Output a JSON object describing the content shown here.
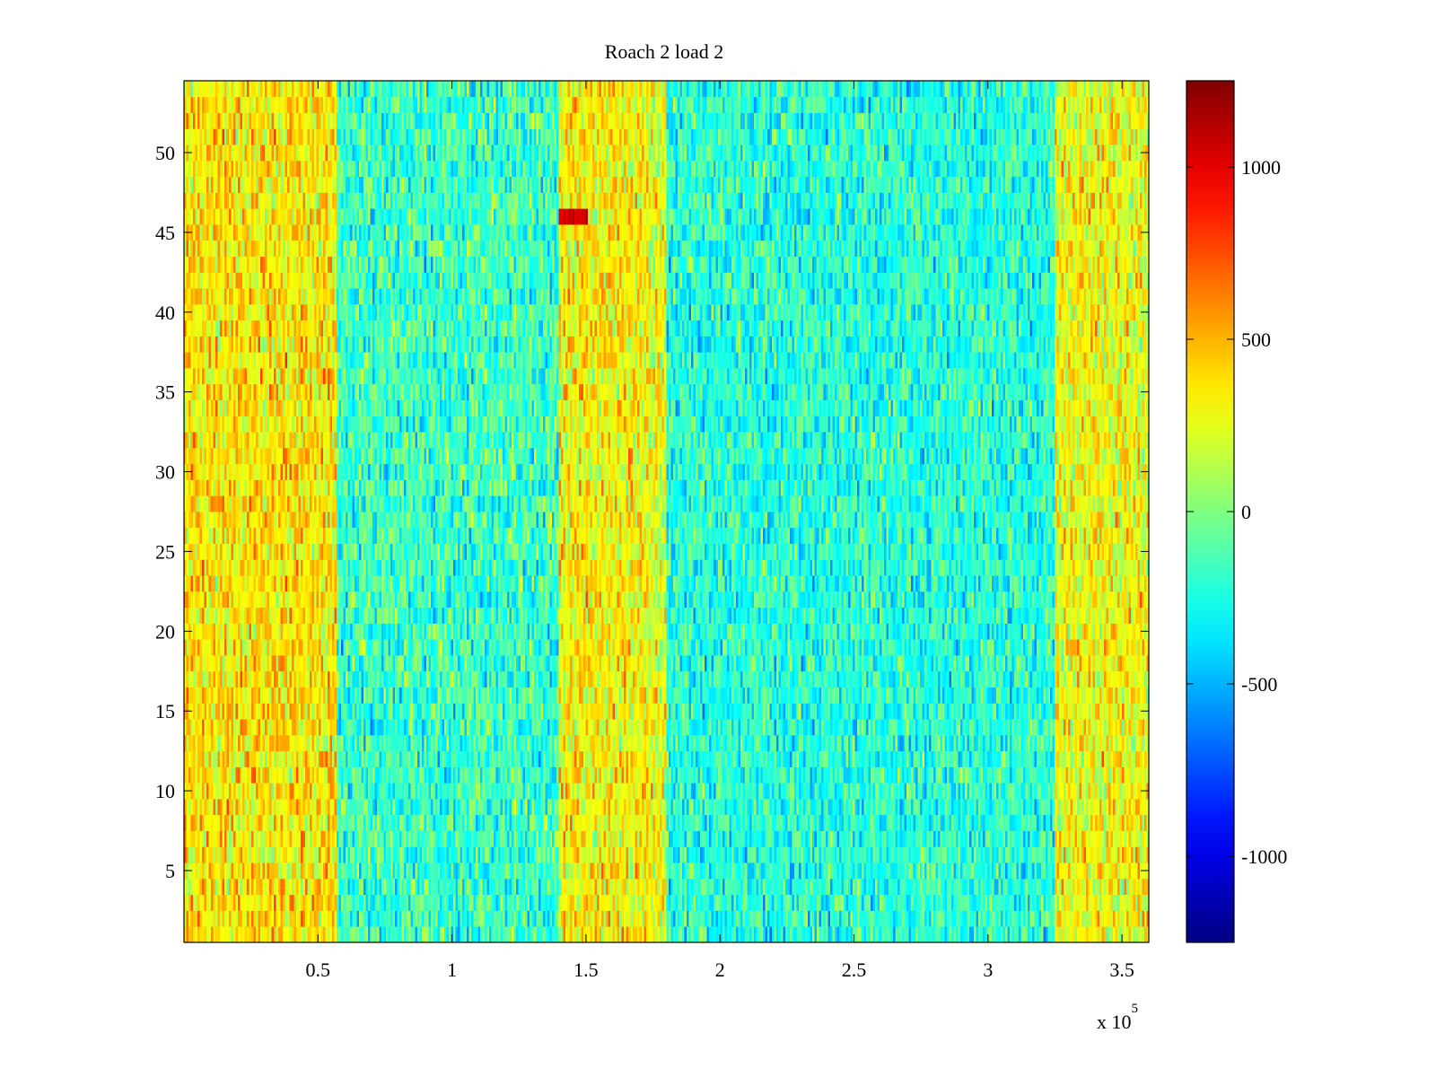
{
  "chart_data": {
    "type": "heatmap",
    "title": "Roach 2 load 2",
    "xlabel": "",
    "ylabel": "",
    "xlim": [
      0,
      360000
    ],
    "ylim": [
      0.5,
      54.5
    ],
    "x_tick_values": [
      50000,
      100000,
      150000,
      200000,
      250000,
      300000,
      350000
    ],
    "x_tick_labels": [
      "0.5",
      "1",
      "1.5",
      "2",
      "2.5",
      "3",
      "3.5"
    ],
    "x_exponent_label": "x 10",
    "x_exponent_power": "5",
    "y_tick_values": [
      5,
      10,
      15,
      20,
      25,
      30,
      35,
      40,
      45,
      50
    ],
    "y_tick_labels": [
      "5",
      "10",
      "15",
      "20",
      "25",
      "30",
      "35",
      "40",
      "45",
      "50"
    ],
    "rows": 54,
    "colormap": "jet",
    "clim": [
      -1250,
      1250
    ],
    "colorbar_tick_values": [
      1000,
      500,
      0,
      -500,
      -1000
    ],
    "colorbar_tick_labels": [
      "1000",
      "500",
      "0",
      "-500",
      "-1000"
    ],
    "bands": [
      {
        "x_start": 0,
        "x_end": 57000,
        "mean": 360,
        "spread": 260
      },
      {
        "x_start": 57000,
        "x_end": 140000,
        "mean": -170,
        "spread": 270
      },
      {
        "x_start": 140000,
        "x_end": 173000,
        "mean": 320,
        "spread": 260
      },
      {
        "x_start": 173000,
        "x_end": 180000,
        "mean": 250,
        "spread": 250
      },
      {
        "x_start": 180000,
        "x_end": 325000,
        "mean": -220,
        "spread": 250
      },
      {
        "x_start": 325000,
        "x_end": 360000,
        "mean": 290,
        "spread": 260
      }
    ],
    "hotspot": {
      "x_start": 140000,
      "x_end": 151000,
      "row": 46,
      "value": 1050
    },
    "grid": false
  }
}
